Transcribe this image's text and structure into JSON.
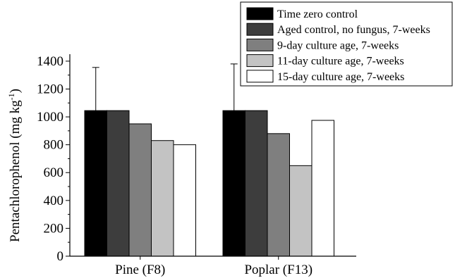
{
  "chart_data": {
    "type": "bar",
    "categories": [
      "Pine (F8)",
      "Poplar (F13)"
    ],
    "series": [
      {
        "name": "Time zero control",
        "values": [
          1045,
          1045
        ],
        "color": "#000000",
        "error": [
          310,
          335
        ]
      },
      {
        "name": "Aged control, no fungus, 7-weeks",
        "values": [
          1045,
          1045
        ],
        "color": "#3d3d3d"
      },
      {
        "name": "9-day culture age, 7-weeks",
        "values": [
          950,
          880
        ],
        "color": "#7f7f7f"
      },
      {
        "name": "11-day culture age, 7-weeks",
        "values": [
          830,
          650
        ],
        "color": "#c3c3c3"
      },
      {
        "name": "15-day culture age, 7-weeks",
        "values": [
          800,
          975
        ],
        "color": "#ffffff"
      }
    ],
    "ylabel": "Pentachlorophenol (mg kg",
    "ylabel_superscript": "-1",
    "ylabel_close": ")",
    "ylim": [
      0,
      1450
    ],
    "yticks": [
      0,
      200,
      400,
      600,
      800,
      1000,
      1200,
      1400
    ],
    "grid": false,
    "legend_position": "top-right"
  }
}
